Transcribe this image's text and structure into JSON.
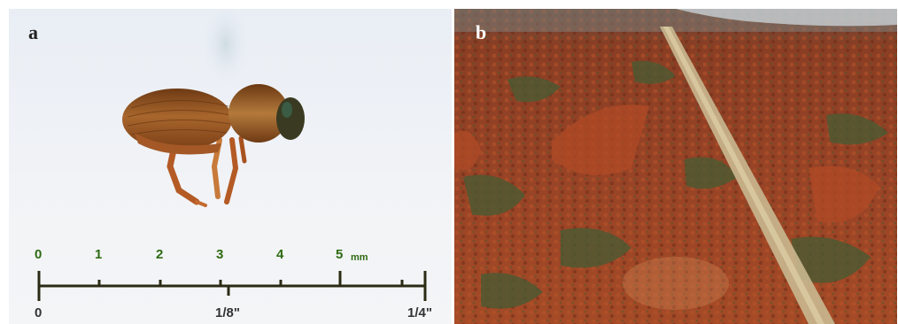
{
  "panels": [
    {
      "letter": "a"
    },
    {
      "letter": "b"
    }
  ],
  "scale_bar": {
    "mm_ticks": [
      "0",
      "1",
      "2",
      "3",
      "4",
      "5"
    ],
    "mm_unit": "mm",
    "inch_ticks": [
      "0",
      "1/8\"",
      "1/4\""
    ]
  },
  "colors": {
    "scale_green": "#2e6b12",
    "scale_dark": "#333333",
    "beetle": "#8a4a1c",
    "forest_red": "#9a3f22",
    "forest_green": "#4a5a32"
  }
}
